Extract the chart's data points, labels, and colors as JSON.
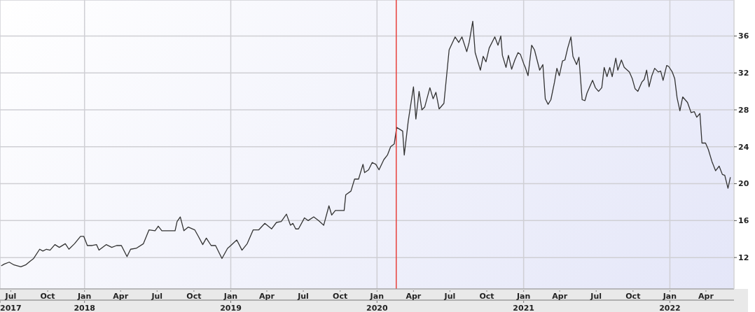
{
  "chart_data": {
    "type": "line",
    "x": [
      "2017-06-07",
      "2017-06-15",
      "2017-06-27",
      "2017-07-09",
      "2017-07-26",
      "2017-08-07",
      "2017-08-18",
      "2017-08-27",
      "2017-09-11",
      "2017-09-19",
      "2017-09-28",
      "2017-10-07",
      "2017-10-19",
      "2017-10-30",
      "2017-11-14",
      "2017-11-23",
      "2017-12-07",
      "2017-12-22",
      "2017-12-30",
      "2018-01-08",
      "2018-01-20",
      "2018-01-31",
      "2018-02-06",
      "2018-02-24",
      "2018-03-10",
      "2018-03-22",
      "2018-04-03",
      "2018-04-17",
      "2018-04-26",
      "2018-05-10",
      "2018-05-28",
      "2018-06-11",
      "2018-06-26",
      "2018-07-04",
      "2018-07-13",
      "2018-08-15",
      "2018-08-20",
      "2018-08-28",
      "2018-09-06",
      "2018-09-17",
      "2018-10-03",
      "2018-10-12",
      "2018-10-23",
      "2018-11-01",
      "2018-11-13",
      "2018-11-24",
      "2018-12-10",
      "2018-12-24",
      "2019-01-01",
      "2019-01-16",
      "2019-01-29",
      "2019-02-11",
      "2019-02-26",
      "2019-03-12",
      "2019-03-27",
      "2019-04-13",
      "2019-04-25",
      "2019-05-07",
      "2019-05-20",
      "2019-05-30",
      "2019-06-05",
      "2019-06-12",
      "2019-06-19",
      "2019-07-04",
      "2019-07-13",
      "2019-07-27",
      "2019-08-08",
      "2019-08-21",
      "2019-09-03",
      "2019-09-10",
      "2019-09-19",
      "2019-09-29",
      "2019-10-11",
      "2019-10-15",
      "2019-10-28",
      "2019-11-06",
      "2019-11-16",
      "2019-11-27",
      "2019-12-01",
      "2019-12-11",
      "2019-12-20",
      "2019-12-29",
      "2020-01-06",
      "2020-01-18",
      "2020-01-27",
      "2020-02-04",
      "2020-02-13",
      "2020-02-19",
      "2020-03-05",
      "2020-03-09",
      "2020-03-19",
      "2020-04-01",
      "2020-04-07",
      "2020-04-15",
      "2020-04-22",
      "2020-04-29",
      "2020-05-12",
      "2020-05-20",
      "2020-05-27",
      "2020-06-04",
      "2020-06-16",
      "2020-06-29",
      "2020-07-14",
      "2020-07-23",
      "2020-07-31",
      "2020-08-12",
      "2020-08-18",
      "2020-08-27",
      "2020-09-02",
      "2020-09-15",
      "2020-09-22",
      "2020-09-29",
      "2020-10-07",
      "2020-10-21",
      "2020-10-29",
      "2020-11-05",
      "2020-11-09",
      "2020-11-18",
      "2020-11-24",
      "2020-12-02",
      "2020-12-10",
      "2020-12-18",
      "2020-12-24",
      "2021-01-02",
      "2021-01-05",
      "2021-01-12",
      "2021-01-21",
      "2021-01-28",
      "2021-02-10",
      "2021-02-18",
      "2021-02-24",
      "2021-03-03",
      "2021-03-10",
      "2021-03-19",
      "2021-03-25",
      "2021-03-31",
      "2021-04-08",
      "2021-04-14",
      "2021-04-21",
      "2021-04-29",
      "2021-05-04",
      "2021-05-13",
      "2021-05-19",
      "2021-05-27",
      "2021-06-03",
      "2021-06-08",
      "2021-06-22",
      "2021-06-29",
      "2021-07-07",
      "2021-07-15",
      "2021-07-21",
      "2021-07-28",
      "2021-08-04",
      "2021-08-10",
      "2021-08-19",
      "2021-08-24",
      "2021-09-02",
      "2021-09-09",
      "2021-09-22",
      "2021-09-29",
      "2021-10-06",
      "2021-10-13",
      "2021-10-23",
      "2021-10-29",
      "2021-11-04",
      "2021-11-10",
      "2021-11-17",
      "2021-11-24",
      "2021-12-03",
      "2021-12-09",
      "2021-12-15",
      "2021-12-24",
      "2021-12-29",
      "2022-01-07",
      "2022-01-13",
      "2022-01-19",
      "2022-01-26",
      "2022-02-02",
      "2022-02-14",
      "2022-02-23",
      "2022-03-03",
      "2022-03-09",
      "2022-03-17",
      "2022-03-22",
      "2022-03-31",
      "2022-04-07",
      "2022-04-16",
      "2022-04-25",
      "2022-05-04",
      "2022-05-12",
      "2022-05-18",
      "2022-05-26",
      "2022-06-01"
    ],
    "series": [
      {
        "color": "#333333",
        "values": [
          11.1,
          11.3,
          11.5,
          11.2,
          11.0,
          11.2,
          11.6,
          11.9,
          12.9,
          12.7,
          12.9,
          12.8,
          13.4,
          13.1,
          13.5,
          12.9,
          13.5,
          14.3,
          14.3,
          13.3,
          13.3,
          13.4,
          12.8,
          13.4,
          13.1,
          13.3,
          13.3,
          12.1,
          12.9,
          13.0,
          13.5,
          15.0,
          14.9,
          15.4,
          14.9,
          14.9,
          15.9,
          16.4,
          14.9,
          15.3,
          15.0,
          14.3,
          13.4,
          14.1,
          13.3,
          13.3,
          11.9,
          13.0,
          13.3,
          13.9,
          12.8,
          13.5,
          15.0,
          15.0,
          15.7,
          15.1,
          15.8,
          15.9,
          16.7,
          15.5,
          15.7,
          15.1,
          15.1,
          16.3,
          16.0,
          16.4,
          16.0,
          15.5,
          17.6,
          16.6,
          17.1,
          17.1,
          17.1,
          18.8,
          19.2,
          20.5,
          20.5,
          22.1,
          21.2,
          21.5,
          22.3,
          22.1,
          21.5,
          22.6,
          23.1,
          24.0,
          24.3,
          26.1,
          25.7,
          23.1,
          26.8,
          30.5,
          27.0,
          30.0,
          28.0,
          28.3,
          30.4,
          29.2,
          29.9,
          28.1,
          28.7,
          34.5,
          35.9,
          35.3,
          35.9,
          34.3,
          35.3,
          37.6,
          34.2,
          32.3,
          33.8,
          33.2,
          34.7,
          35.9,
          35.0,
          36.0,
          33.9,
          32.6,
          33.9,
          32.4,
          33.4,
          34.2,
          34.0,
          32.9,
          32.6,
          31.7,
          35.0,
          34.5,
          32.3,
          32.9,
          29.2,
          28.6,
          29.1,
          31.0,
          32.5,
          31.7,
          33.3,
          33.4,
          34.7,
          35.9,
          33.8,
          32.9,
          33.7,
          29.1,
          29.0,
          29.8,
          31.2,
          30.4,
          30.0,
          30.4,
          32.6,
          31.6,
          32.6,
          31.6,
          33.6,
          32.3,
          33.4,
          32.6,
          32.1,
          31.4,
          30.3,
          30.0,
          31.0,
          31.3,
          32.3,
          30.5,
          31.7,
          32.5,
          32.1,
          32.2,
          31.2,
          32.8,
          32.7,
          32.1,
          31.4,
          29.3,
          27.9,
          29.4,
          28.8,
          27.7,
          27.8,
          27.2,
          27.6,
          24.4,
          24.4,
          23.7,
          22.4,
          21.4,
          21.9,
          21.0,
          20.9,
          19.5,
          20.7
        ]
      }
    ],
    "xlim": [
      "2017-06-04",
      "2022-06-10"
    ],
    "xticks": [
      {
        "value": "2017-07-01",
        "label": "Jul"
      },
      {
        "value": "2017-10-01",
        "label": "Oct"
      },
      {
        "value": "2018-01-01",
        "label": "Jan"
      },
      {
        "value": "2018-04-01",
        "label": "Apr"
      },
      {
        "value": "2018-07-01",
        "label": "Jul"
      },
      {
        "value": "2018-10-01",
        "label": "Oct"
      },
      {
        "value": "2019-01-01",
        "label": "Jan"
      },
      {
        "value": "2019-04-01",
        "label": "Apr"
      },
      {
        "value": "2019-07-01",
        "label": "Jul"
      },
      {
        "value": "2019-10-01",
        "label": "Oct"
      },
      {
        "value": "2020-01-01",
        "label": "Jan"
      },
      {
        "value": "2020-04-01",
        "label": "Apr"
      },
      {
        "value": "2020-07-01",
        "label": "Jul"
      },
      {
        "value": "2020-10-01",
        "label": "Oct"
      },
      {
        "value": "2021-01-01",
        "label": "Jan"
      },
      {
        "value": "2021-04-01",
        "label": "Apr"
      },
      {
        "value": "2021-07-01",
        "label": "Jul"
      },
      {
        "value": "2021-10-01",
        "label": "Oct"
      },
      {
        "value": "2022-01-01",
        "label": "Jan"
      },
      {
        "value": "2022-04-01",
        "label": "Apr"
      }
    ],
    "x2lim": [
      "2017-06-04",
      "2022-06-10"
    ],
    "x2ticks": [
      {
        "value": "2017-06-04",
        "label": "2017"
      },
      {
        "value": "2018-01-01",
        "label": "2018"
      },
      {
        "value": "2019-01-01",
        "label": "2019"
      },
      {
        "value": "2020-01-01",
        "label": "2020"
      },
      {
        "value": "2021-01-01",
        "label": "2021"
      },
      {
        "value": "2022-01-01",
        "label": "2022"
      }
    ],
    "ylim": [
      8.6,
      39.9
    ],
    "yticks": [
      12,
      16,
      20,
      24,
      28,
      32,
      36
    ],
    "ref_lines": [
      {
        "axis": "x",
        "value": "2020-02-18",
        "color": "#e8413c"
      }
    ],
    "grid": true,
    "marker": "none",
    "line_style": "solid",
    "legend": false
  }
}
